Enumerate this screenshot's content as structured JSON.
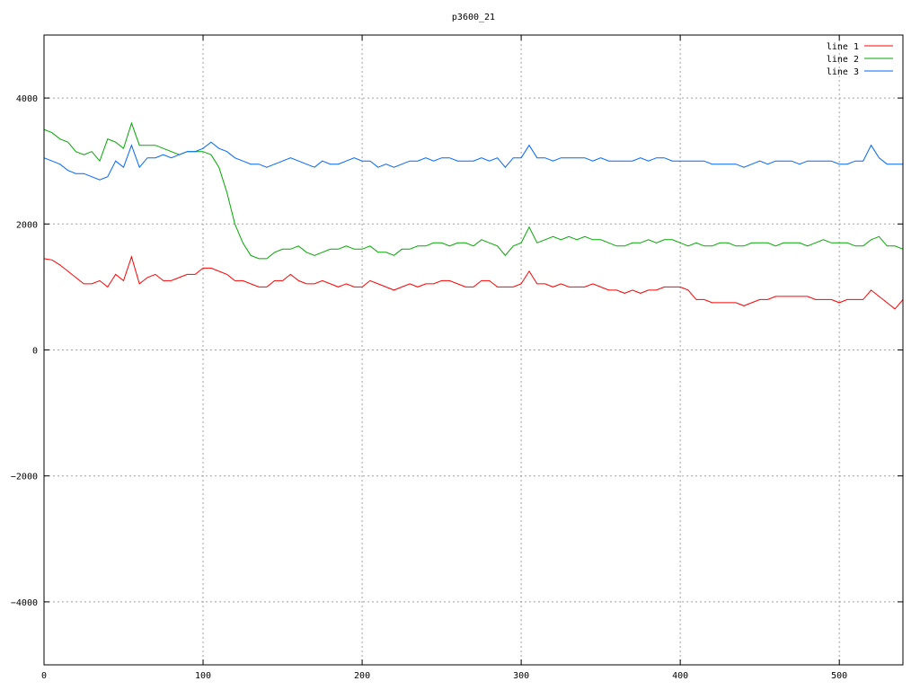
{
  "chart_data": {
    "type": "line",
    "title": "p3600_21",
    "xlabel": "",
    "ylabel": "",
    "xlim": [
      0,
      540
    ],
    "ylim": [
      -5000,
      5000
    ],
    "x_ticks": [
      0,
      100,
      200,
      300,
      400,
      500
    ],
    "y_ticks": [
      -4000,
      -2000,
      0,
      2000,
      4000
    ],
    "grid": true,
    "legend_position": "top-right",
    "x": [
      0,
      5,
      10,
      15,
      20,
      25,
      30,
      35,
      40,
      45,
      50,
      55,
      60,
      65,
      70,
      75,
      80,
      85,
      90,
      95,
      100,
      105,
      110,
      115,
      120,
      125,
      130,
      135,
      140,
      145,
      150,
      155,
      160,
      165,
      170,
      175,
      180,
      185,
      190,
      195,
      200,
      205,
      210,
      215,
      220,
      225,
      230,
      235,
      240,
      245,
      250,
      255,
      260,
      265,
      270,
      275,
      280,
      285,
      290,
      295,
      300,
      305,
      310,
      315,
      320,
      325,
      330,
      335,
      340,
      345,
      350,
      355,
      360,
      365,
      370,
      375,
      380,
      385,
      390,
      395,
      400,
      405,
      410,
      415,
      420,
      425,
      430,
      435,
      440,
      445,
      450,
      455,
      460,
      465,
      470,
      475,
      480,
      485,
      490,
      495,
      500,
      505,
      510,
      515,
      520,
      525,
      530,
      535,
      540
    ],
    "series": [
      {
        "name": "line 1",
        "color": "#ff0000",
        "values": [
          1450,
          1430,
          1350,
          1250,
          1150,
          1050,
          1050,
          1100,
          1000,
          1200,
          1100,
          1480,
          1050,
          1150,
          1200,
          1100,
          1100,
          1150,
          1200,
          1200,
          1300,
          1300,
          1250,
          1200,
          1100,
          1100,
          1050,
          1000,
          1000,
          1100,
          1100,
          1200,
          1100,
          1050,
          1050,
          1100,
          1050,
          1000,
          1050,
          1000,
          1000,
          1100,
          1050,
          1000,
          950,
          1000,
          1050,
          1000,
          1050,
          1050,
          1100,
          1100,
          1050,
          1000,
          1000,
          1100,
          1100,
          1000,
          1000,
          1000,
          1050,
          1250,
          1050,
          1050,
          1000,
          1050,
          1000,
          1000,
          1000,
          1050,
          1000,
          950,
          950,
          900,
          950,
          900,
          950,
          950,
          1000,
          1000,
          1000,
          950,
          800,
          800,
          750,
          750,
          750,
          750,
          700,
          750,
          800,
          800,
          850,
          850,
          850,
          850,
          850,
          800,
          800,
          800,
          750,
          800,
          800,
          800,
          950,
          850,
          750,
          650,
          800
        ]
      },
      {
        "name": "line 2",
        "color": "#00aa00",
        "values": [
          3500,
          3450,
          3350,
          3300,
          3150,
          3100,
          3150,
          3000,
          3350,
          3300,
          3200,
          3600,
          3250,
          3250,
          3250,
          3200,
          3150,
          3100,
          3150,
          3150,
          3150,
          3100,
          2900,
          2500,
          2000,
          1700,
          1500,
          1450,
          1450,
          1550,
          1600,
          1600,
          1650,
          1550,
          1500,
          1550,
          1600,
          1600,
          1650,
          1600,
          1600,
          1650,
          1550,
          1550,
          1500,
          1600,
          1600,
          1650,
          1650,
          1700,
          1700,
          1650,
          1700,
          1700,
          1650,
          1750,
          1700,
          1650,
          1500,
          1650,
          1700,
          1950,
          1700,
          1750,
          1800,
          1750,
          1800,
          1750,
          1800,
          1750,
          1750,
          1700,
          1650,
          1650,
          1700,
          1700,
          1750,
          1700,
          1750,
          1750,
          1700,
          1650,
          1700,
          1650,
          1650,
          1700,
          1700,
          1650,
          1650,
          1700,
          1700,
          1700,
          1650,
          1700,
          1700,
          1700,
          1650,
          1700,
          1750,
          1700,
          1700,
          1700,
          1650,
          1650,
          1750,
          1800,
          1650,
          1650,
          1600
        ]
      },
      {
        "name": "line 3",
        "color": "#0066ff",
        "values": [
          3050,
          3000,
          2950,
          2850,
          2800,
          2800,
          2750,
          2700,
          2750,
          3000,
          2900,
          3250,
          2900,
          3050,
          3050,
          3100,
          3050,
          3100,
          3150,
          3150,
          3200,
          3300,
          3200,
          3150,
          3050,
          3000,
          2950,
          2950,
          2900,
          2950,
          3000,
          3050,
          3000,
          2950,
          2900,
          3000,
          2950,
          2950,
          3000,
          3050,
          3000,
          3000,
          2900,
          2950,
          2900,
          2950,
          3000,
          3000,
          3050,
          3000,
          3050,
          3050,
          3000,
          3000,
          3000,
          3050,
          3000,
          3050,
          2900,
          3050,
          3050,
          3250,
          3050,
          3050,
          3000,
          3050,
          3050,
          3050,
          3050,
          3000,
          3050,
          3000,
          3000,
          3000,
          3000,
          3050,
          3000,
          3050,
          3050,
          3000,
          3000,
          3000,
          3000,
          3000,
          2950,
          2950,
          2950,
          2950,
          2900,
          2950,
          3000,
          2950,
          3000,
          3000,
          3000,
          2950,
          3000,
          3000,
          3000,
          3000,
          2950,
          2950,
          3000,
          3000,
          3250,
          3050,
          2950,
          2950,
          2950
        ]
      }
    ]
  }
}
